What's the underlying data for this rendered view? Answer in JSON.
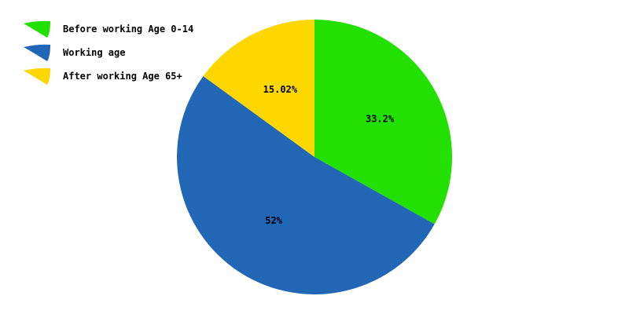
{
  "chart_data": {
    "type": "pie",
    "start_angle_deg": 0,
    "direction": "clockwise",
    "slices": [
      {
        "name": "Before working Age 0-14",
        "value": 33.2,
        "label": "33.2%",
        "color": "#22e000"
      },
      {
        "name": "Working age",
        "value": 52,
        "label": "52%",
        "color": "#2167b6"
      },
      {
        "name": "After working Age 65+",
        "value": 15.02,
        "label": "15.02%",
        "color": "#fed600"
      }
    ],
    "legend_position": "top-left"
  }
}
